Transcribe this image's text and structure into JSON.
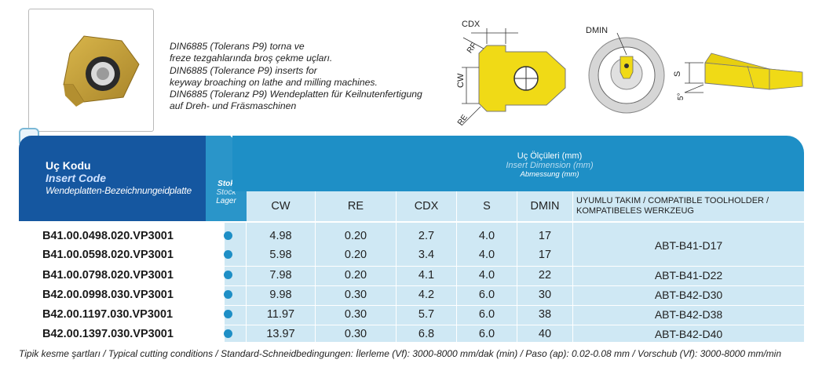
{
  "description": [
    "DIN6885 (Tolerans P9) torna ve",
    "freze tezgahlarında broş çekme uçları.",
    "DIN6885 (Tolerance P9) inserts for",
    "keyway broaching on lathe and milling machines.",
    "DIN6885 (Toleranz P9) Wendeplatten für Keilnutenfertigung",
    "auf Dreh- und Fräsmaschinen"
  ],
  "diagram_labels": {
    "cdx": "CDX",
    "rf": "RF",
    "cw": "CW",
    "re": "RE",
    "dmin": "DMIN",
    "s": "S",
    "angle": "5°"
  },
  "header": {
    "code_tr": "Uç Kodu",
    "code_en": "Insert Code",
    "code_de": "Wendeplatten-Bezeichnungeidplatte",
    "stock_tr": "Stok",
    "stock_en": "Stock",
    "stock_de": "Lager",
    "dim_tr": "Uç Ölçüleri (mm)",
    "dim_en": "Insert Dimension (mm)",
    "dim_de": "Abmessung (mm)",
    "cols": [
      "CW",
      "RE",
      "CDX",
      "S",
      "DMIN"
    ],
    "compat": "UYUMLU TAKIM / COMPATIBLE TOOLHOLDER / KOMPATIBELES WERKZEUG"
  },
  "rows": [
    {
      "code": "B41.00.0498.020.VP3001",
      "cw": "4.98",
      "re": "0.20",
      "cdx": "2.7",
      "s": "4.0",
      "dmin": "17"
    },
    {
      "code": "B41.00.0598.020.VP3001",
      "cw": "5.98",
      "re": "0.20",
      "cdx": "3.4",
      "s": "4.0",
      "dmin": "17"
    },
    {
      "code": "B41.00.0798.020.VP3001",
      "cw": "7.98",
      "re": "0.20",
      "cdx": "4.1",
      "s": "4.0",
      "dmin": "22"
    },
    {
      "code": "B42.00.0998.030.VP3001",
      "cw": "9.98",
      "re": "0.30",
      "cdx": "4.2",
      "s": "6.0",
      "dmin": "30"
    },
    {
      "code": "B42.00.1197.030.VP3001",
      "cw": "11.97",
      "re": "0.30",
      "cdx": "5.7",
      "s": "6.0",
      "dmin": "38"
    },
    {
      "code": "B42.00.1397.030.VP3001",
      "cw": "13.97",
      "re": "0.30",
      "cdx": "6.8",
      "s": "6.0",
      "dmin": "40"
    }
  ],
  "tools": [
    "ABT-B41-D17",
    "ABT-B41-D22",
    "ABT-B42-D30",
    "ABT-B42-D38",
    "ABT-B42-D40"
  ],
  "footer": "Tipik kesme şartları / Typical cutting conditions / Standard-Schneidbedingungen: İlerleme (Vf): 3000-8000 mm/dak (min) / Paso (ap): 0.02-0.08 mm / Vorschub (Vf): 3000-8000 mm/min",
  "colors": {
    "dark_blue": "#1557a0",
    "mid_blue": "#1e8fc6",
    "light_blue": "#cfe8f4",
    "insert_gold": "#e8d51a"
  }
}
